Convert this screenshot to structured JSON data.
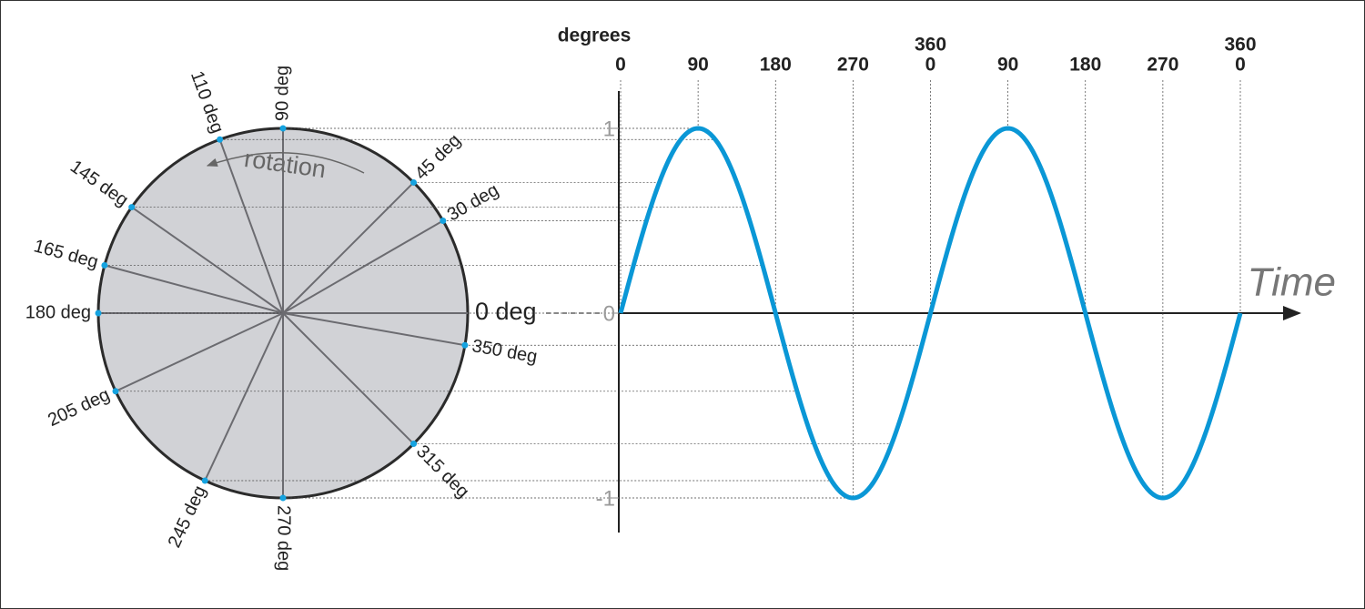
{
  "circle": {
    "spokes": [
      {
        "angle": 90,
        "label": "90 deg"
      },
      {
        "angle": 110,
        "label": "110 deg"
      },
      {
        "angle": 145,
        "label": "145 deg"
      },
      {
        "angle": 165,
        "label": "165 deg"
      },
      {
        "angle": 180,
        "label": "180 deg"
      },
      {
        "angle": 205,
        "label": "205 deg"
      },
      {
        "angle": 245,
        "label": "245 deg"
      },
      {
        "angle": 270,
        "label": "270 deg"
      },
      {
        "angle": 315,
        "label": "315 deg"
      },
      {
        "angle": 350,
        "label": "350 deg"
      },
      {
        "angle": 30,
        "label": "30 deg"
      },
      {
        "angle": 45,
        "label": "45 deg"
      }
    ],
    "zero": {
      "angle": 0,
      "label": "0 deg"
    },
    "rotation_label": "rotation"
  },
  "graph": {
    "degrees_label": "degrees",
    "degree_ticks": [
      {
        "value": 0,
        "lines": [
          "0"
        ]
      },
      {
        "value": 90,
        "lines": [
          "90"
        ]
      },
      {
        "value": 180,
        "lines": [
          "180"
        ]
      },
      {
        "value": 270,
        "lines": [
          "270"
        ]
      },
      {
        "value": 360,
        "lines": [
          "360",
          "0"
        ]
      },
      {
        "value": 450,
        "lines": [
          "90"
        ]
      },
      {
        "value": 540,
        "lines": [
          "180"
        ]
      },
      {
        "value": 630,
        "lines": [
          "270"
        ]
      },
      {
        "value": 720,
        "lines": [
          "360",
          "0"
        ]
      }
    ],
    "yticks": [
      1,
      0,
      -1
    ],
    "time_label": "Time"
  }
}
